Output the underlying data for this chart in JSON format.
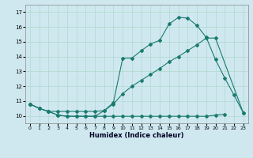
{
  "xlabel": "Humidex (Indice chaleur)",
  "background_color": "#cfe8f0",
  "line_color": "#1a7a6e",
  "grid_color": "#b0d8cc",
  "xlim": [
    -0.5,
    23.5
  ],
  "ylim": [
    9.5,
    17.5
  ],
  "xticks": [
    0,
    1,
    2,
    3,
    4,
    5,
    6,
    7,
    8,
    9,
    10,
    11,
    12,
    13,
    14,
    15,
    16,
    17,
    18,
    19,
    20,
    21,
    22,
    23
  ],
  "yticks": [
    10,
    11,
    12,
    13,
    14,
    15,
    16,
    17
  ],
  "series_x": [
    [
      0,
      1,
      2,
      3,
      4,
      5,
      6,
      7,
      8,
      9,
      10,
      11,
      12,
      13,
      14,
      15,
      16,
      17,
      18,
      19,
      20,
      21
    ],
    [
      0,
      1,
      2,
      3,
      4,
      5,
      6,
      7,
      8,
      9,
      10,
      11,
      12,
      13,
      14,
      15,
      16,
      17,
      18,
      19,
      20,
      23
    ],
    [
      0,
      1,
      2,
      3,
      4,
      5,
      6,
      7,
      8,
      9,
      10,
      11,
      12,
      13,
      14,
      15,
      16,
      17,
      18,
      19,
      20,
      21,
      22,
      23
    ]
  ],
  "series_y": [
    [
      10.8,
      10.5,
      10.3,
      10.05,
      9.97,
      9.97,
      9.97,
      9.97,
      9.97,
      9.97,
      9.97,
      9.97,
      9.97,
      9.97,
      9.97,
      9.97,
      9.97,
      9.97,
      9.97,
      9.97,
      10.05,
      10.1
    ],
    [
      10.8,
      10.5,
      10.3,
      10.3,
      10.3,
      10.3,
      10.3,
      10.3,
      10.35,
      10.8,
      11.5,
      12.0,
      12.4,
      12.8,
      13.2,
      13.65,
      14.0,
      14.4,
      14.8,
      15.25,
      15.25,
      10.2
    ],
    [
      10.8,
      10.5,
      10.3,
      10.05,
      9.97,
      9.97,
      9.97,
      9.97,
      10.35,
      10.9,
      13.9,
      13.9,
      14.4,
      14.85,
      15.1,
      16.2,
      16.65,
      16.6,
      16.1,
      15.3,
      13.8,
      12.55,
      11.4,
      10.2
    ]
  ]
}
